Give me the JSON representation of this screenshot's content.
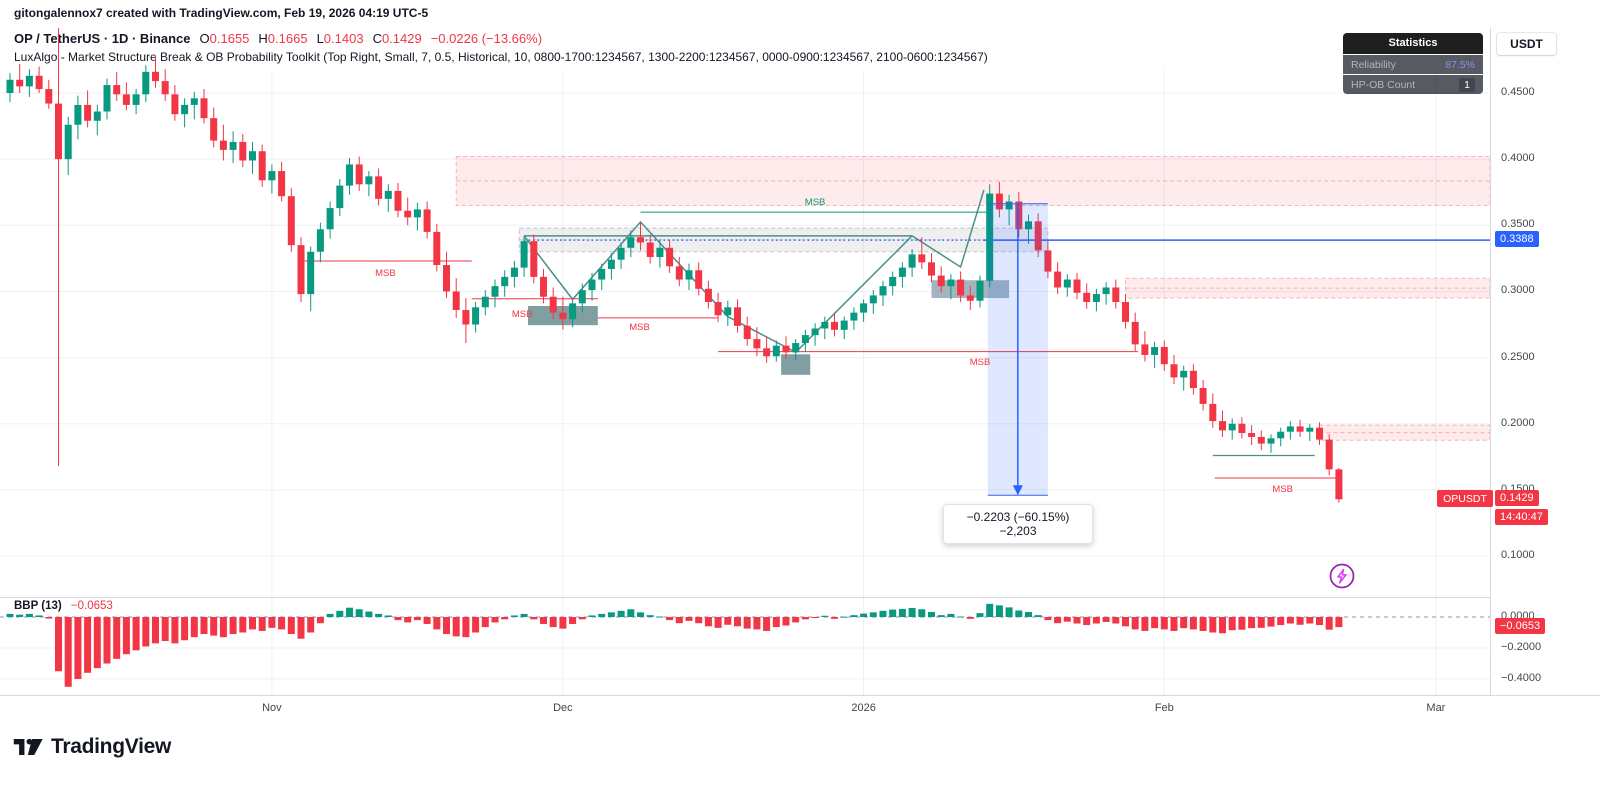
{
  "header": {
    "attribution": "gitongalennox7 created with TradingView.com, Feb 19, 2026 04:19 UTC-5",
    "symbol": "OP / TetherUS · 1D · Binance",
    "ohlc": [
      {
        "k": "O",
        "v": "0.1655"
      },
      {
        "k": "H",
        "v": "0.1665"
      },
      {
        "k": "L",
        "v": "0.1403"
      },
      {
        "k": "C",
        "v": "0.1429"
      }
    ],
    "change": "−0.0226 (−13.66%)",
    "indicator_title": "LuxAlgo - Market Structure Break & OB Probability Toolkit (Top Right, Small, 7, 0.5, Historical, 10, 0800-1700:1234567, 1300-2200:1234567, 0000-0900:1234567, 2100-0600:1234567)"
  },
  "stats_panel": {
    "title": "Statistics",
    "rows": [
      {
        "label": "Reliability",
        "value": "87.5%"
      },
      {
        "label": "HP-OB Count",
        "value": "1"
      }
    ]
  },
  "currency_button": {
    "label": "USDT"
  },
  "indicator_header": {
    "name": "BBP (13)",
    "value": "−0.0653"
  },
  "price_axis": {
    "tick_labels": [
      "0.4500",
      "0.4000",
      "0.3500",
      "0.3000",
      "0.2500",
      "0.2000",
      "0.1500",
      "0.1000"
    ],
    "blue_badge": "0.3388",
    "symbol_badge": "OPUSDT",
    "price_badge": "0.1429",
    "countdown": "14:40:47",
    "bbp_tick_labels": [
      "0.0000",
      "−0.2000",
      "−0.4000"
    ],
    "bbp_badge": "−0.0653"
  },
  "footer": {
    "brand": "TradingView"
  },
  "colors": {
    "up": "#089981",
    "down": "#f23645",
    "blue": "#2962ff",
    "grid": "#eef0f5",
    "structure": "#4c8f8a",
    "stats_value": "#8b90e8",
    "axis_text": "#434651"
  },
  "chart_data": {
    "type": "candlestick",
    "title": "OP/USDT 1D Binance with LuxAlgo Market Structure Break & OB Probability Toolkit",
    "legend_position": "top-right",
    "grid": true,
    "msb_label_text": "MSB",
    "last_price": 0.1429,
    "x_axis": {
      "labels": [
        {
          "text": "Nov",
          "idx": 27
        },
        {
          "text": "Dec",
          "idx": 57
        },
        {
          "text": "2026",
          "idx": 88
        },
        {
          "text": "Feb",
          "idx": 119
        },
        {
          "text": "Mar",
          "idx": 147
        }
      ]
    },
    "y_axis": {
      "ticks": [
        0.45,
        0.4,
        0.35,
        0.3,
        0.25,
        0.2,
        0.15,
        0.1
      ],
      "range": [
        0.09,
        0.5
      ]
    },
    "candles": [
      [
        0.45,
        0.465,
        0.443,
        0.46
      ],
      [
        0.46,
        0.472,
        0.45,
        0.455
      ],
      [
        0.455,
        0.468,
        0.447,
        0.463
      ],
      [
        0.463,
        0.47,
        0.45,
        0.453
      ],
      [
        0.453,
        0.46,
        0.438,
        0.442
      ],
      [
        0.442,
        0.499,
        0.168,
        0.4
      ],
      [
        0.4,
        0.432,
        0.388,
        0.426
      ],
      [
        0.426,
        0.448,
        0.415,
        0.441
      ],
      [
        0.441,
        0.452,
        0.424,
        0.429
      ],
      [
        0.429,
        0.441,
        0.418,
        0.436
      ],
      [
        0.436,
        0.461,
        0.43,
        0.456
      ],
      [
        0.456,
        0.466,
        0.444,
        0.449
      ],
      [
        0.449,
        0.458,
        0.437,
        0.441
      ],
      [
        0.441,
        0.453,
        0.434,
        0.449
      ],
      [
        0.449,
        0.471,
        0.443,
        0.466
      ],
      [
        0.466,
        0.478,
        0.454,
        0.459
      ],
      [
        0.459,
        0.468,
        0.444,
        0.449
      ],
      [
        0.449,
        0.456,
        0.429,
        0.434
      ],
      [
        0.434,
        0.446,
        0.424,
        0.441
      ],
      [
        0.441,
        0.451,
        0.43,
        0.446
      ],
      [
        0.446,
        0.453,
        0.427,
        0.431
      ],
      [
        0.431,
        0.439,
        0.409,
        0.414
      ],
      [
        0.414,
        0.426,
        0.399,
        0.407
      ],
      [
        0.407,
        0.421,
        0.397,
        0.413
      ],
      [
        0.413,
        0.419,
        0.394,
        0.399
      ],
      [
        0.399,
        0.413,
        0.389,
        0.406
      ],
      [
        0.406,
        0.411,
        0.379,
        0.384
      ],
      [
        0.384,
        0.396,
        0.374,
        0.391
      ],
      [
        0.391,
        0.398,
        0.368,
        0.372
      ],
      [
        0.372,
        0.378,
        0.33,
        0.335
      ],
      [
        0.335,
        0.341,
        0.292,
        0.298
      ],
      [
        0.298,
        0.334,
        0.285,
        0.33
      ],
      [
        0.33,
        0.352,
        0.322,
        0.347
      ],
      [
        0.347,
        0.368,
        0.34,
        0.363
      ],
      [
        0.363,
        0.385,
        0.357,
        0.38
      ],
      [
        0.38,
        0.401,
        0.373,
        0.396
      ],
      [
        0.396,
        0.402,
        0.376,
        0.381
      ],
      [
        0.381,
        0.391,
        0.372,
        0.387
      ],
      [
        0.387,
        0.393,
        0.365,
        0.37
      ],
      [
        0.37,
        0.381,
        0.36,
        0.376
      ],
      [
        0.376,
        0.382,
        0.356,
        0.361
      ],
      [
        0.361,
        0.371,
        0.35,
        0.356
      ],
      [
        0.356,
        0.367,
        0.346,
        0.362
      ],
      [
        0.362,
        0.368,
        0.34,
        0.345
      ],
      [
        0.345,
        0.351,
        0.315,
        0.32
      ],
      [
        0.32,
        0.33,
        0.295,
        0.3
      ],
      [
        0.3,
        0.31,
        0.28,
        0.286
      ],
      [
        0.286,
        0.295,
        0.261,
        0.275
      ],
      [
        0.275,
        0.292,
        0.269,
        0.288
      ],
      [
        0.288,
        0.301,
        0.282,
        0.296
      ],
      [
        0.296,
        0.309,
        0.288,
        0.304
      ],
      [
        0.304,
        0.316,
        0.296,
        0.311
      ],
      [
        0.311,
        0.323,
        0.303,
        0.318
      ],
      [
        0.318,
        0.342,
        0.311,
        0.338
      ],
      [
        0.338,
        0.343,
        0.306,
        0.311
      ],
      [
        0.311,
        0.317,
        0.291,
        0.296
      ],
      [
        0.296,
        0.303,
        0.279,
        0.284
      ],
      [
        0.284,
        0.296,
        0.271,
        0.279
      ],
      [
        0.279,
        0.294,
        0.273,
        0.291
      ],
      [
        0.291,
        0.306,
        0.284,
        0.301
      ],
      [
        0.301,
        0.314,
        0.293,
        0.309
      ],
      [
        0.309,
        0.321,
        0.301,
        0.317
      ],
      [
        0.317,
        0.329,
        0.309,
        0.324
      ],
      [
        0.324,
        0.337,
        0.317,
        0.333
      ],
      [
        0.333,
        0.346,
        0.326,
        0.341
      ],
      [
        0.341,
        0.352,
        0.331,
        0.337
      ],
      [
        0.337,
        0.343,
        0.321,
        0.326
      ],
      [
        0.326,
        0.338,
        0.318,
        0.333
      ],
      [
        0.333,
        0.339,
        0.314,
        0.319
      ],
      [
        0.319,
        0.326,
        0.304,
        0.309
      ],
      [
        0.309,
        0.321,
        0.301,
        0.316
      ],
      [
        0.316,
        0.322,
        0.297,
        0.302
      ],
      [
        0.302,
        0.308,
        0.287,
        0.292
      ],
      [
        0.292,
        0.299,
        0.277,
        0.282
      ],
      [
        0.282,
        0.293,
        0.274,
        0.288
      ],
      [
        0.288,
        0.294,
        0.269,
        0.274
      ],
      [
        0.274,
        0.281,
        0.259,
        0.264
      ],
      [
        0.264,
        0.273,
        0.251,
        0.257
      ],
      [
        0.257,
        0.266,
        0.246,
        0.251
      ],
      [
        0.251,
        0.263,
        0.247,
        0.259
      ],
      [
        0.259,
        0.266,
        0.249,
        0.254
      ],
      [
        0.254,
        0.264,
        0.248,
        0.261
      ],
      [
        0.261,
        0.271,
        0.254,
        0.267
      ],
      [
        0.267,
        0.276,
        0.259,
        0.272
      ],
      [
        0.272,
        0.281,
        0.264,
        0.277
      ],
      [
        0.277,
        0.284,
        0.266,
        0.271
      ],
      [
        0.271,
        0.281,
        0.264,
        0.278
      ],
      [
        0.278,
        0.288,
        0.271,
        0.284
      ],
      [
        0.284,
        0.294,
        0.277,
        0.291
      ],
      [
        0.291,
        0.301,
        0.283,
        0.297
      ],
      [
        0.297,
        0.308,
        0.289,
        0.304
      ],
      [
        0.304,
        0.315,
        0.297,
        0.311
      ],
      [
        0.311,
        0.322,
        0.303,
        0.318
      ],
      [
        0.318,
        0.332,
        0.311,
        0.328
      ],
      [
        0.328,
        0.341,
        0.317,
        0.322
      ],
      [
        0.322,
        0.329,
        0.307,
        0.312
      ],
      [
        0.312,
        0.319,
        0.299,
        0.304
      ],
      [
        0.304,
        0.313,
        0.294,
        0.309
      ],
      [
        0.309,
        0.315,
        0.292,
        0.297
      ],
      [
        0.297,
        0.304,
        0.286,
        0.293
      ],
      [
        0.293,
        0.312,
        0.288,
        0.308
      ],
      [
        0.308,
        0.381,
        0.303,
        0.374
      ],
      [
        0.374,
        0.383,
        0.356,
        0.362
      ],
      [
        0.362,
        0.373,
        0.35,
        0.368
      ],
      [
        0.368,
        0.375,
        0.341,
        0.347
      ],
      [
        0.347,
        0.358,
        0.336,
        0.353
      ],
      [
        0.353,
        0.359,
        0.326,
        0.331
      ],
      [
        0.331,
        0.338,
        0.31,
        0.315
      ],
      [
        0.315,
        0.322,
        0.298,
        0.303
      ],
      [
        0.303,
        0.313,
        0.296,
        0.309
      ],
      [
        0.309,
        0.314,
        0.294,
        0.299
      ],
      [
        0.299,
        0.306,
        0.287,
        0.292
      ],
      [
        0.292,
        0.302,
        0.285,
        0.298
      ],
      [
        0.298,
        0.307,
        0.29,
        0.303
      ],
      [
        0.303,
        0.309,
        0.287,
        0.292
      ],
      [
        0.292,
        0.298,
        0.272,
        0.277
      ],
      [
        0.277,
        0.284,
        0.255,
        0.26
      ],
      [
        0.26,
        0.27,
        0.247,
        0.252
      ],
      [
        0.252,
        0.262,
        0.242,
        0.258
      ],
      [
        0.258,
        0.263,
        0.24,
        0.245
      ],
      [
        0.245,
        0.252,
        0.23,
        0.235
      ],
      [
        0.235,
        0.244,
        0.225,
        0.24
      ],
      [
        0.24,
        0.245,
        0.222,
        0.227
      ],
      [
        0.227,
        0.233,
        0.21,
        0.215
      ],
      [
        0.215,
        0.223,
        0.197,
        0.202
      ],
      [
        0.202,
        0.21,
        0.19,
        0.195
      ],
      [
        0.195,
        0.204,
        0.188,
        0.2
      ],
      [
        0.2,
        0.205,
        0.189,
        0.193
      ],
      [
        0.193,
        0.199,
        0.184,
        0.19
      ],
      [
        0.19,
        0.195,
        0.18,
        0.185
      ],
      [
        0.185,
        0.192,
        0.178,
        0.189
      ],
      [
        0.189,
        0.197,
        0.183,
        0.194
      ],
      [
        0.194,
        0.202,
        0.188,
        0.198
      ],
      [
        0.198,
        0.203,
        0.19,
        0.194
      ],
      [
        0.194,
        0.2,
        0.187,
        0.197
      ],
      [
        0.197,
        0.201,
        0.184,
        0.188
      ],
      [
        0.188,
        0.192,
        0.161,
        0.1655
      ],
      [
        0.1655,
        0.1665,
        0.1403,
        0.1429
      ]
    ],
    "bbp": {
      "name": "BBP",
      "length": 13,
      "current": -0.0653,
      "ticks": [
        0.0,
        -0.2,
        -0.4
      ],
      "values": [
        0.02,
        0.015,
        0.02,
        0.01,
        -0.01,
        -0.35,
        -0.45,
        -0.4,
        -0.36,
        -0.33,
        -0.3,
        -0.27,
        -0.24,
        -0.215,
        -0.19,
        -0.17,
        -0.155,
        -0.17,
        -0.15,
        -0.13,
        -0.11,
        -0.12,
        -0.13,
        -0.11,
        -0.1,
        -0.08,
        -0.09,
        -0.07,
        -0.08,
        -0.11,
        -0.14,
        -0.1,
        -0.04,
        0.02,
        0.04,
        0.06,
        0.05,
        0.035,
        0.02,
        0.01,
        -0.02,
        -0.035,
        -0.02,
        -0.045,
        -0.08,
        -0.11,
        -0.125,
        -0.13,
        -0.1,
        -0.065,
        -0.035,
        -0.015,
        0.01,
        0.02,
        -0.015,
        -0.045,
        -0.065,
        -0.075,
        -0.045,
        -0.015,
        0.01,
        0.02,
        0.03,
        0.04,
        0.05,
        0.03,
        0.012,
        0.003,
        -0.02,
        -0.04,
        -0.025,
        -0.04,
        -0.06,
        -0.07,
        -0.05,
        -0.06,
        -0.075,
        -0.08,
        -0.09,
        -0.065,
        -0.055,
        -0.035,
        -0.015,
        -0.005,
        0.008,
        -0.012,
        0.002,
        0.012,
        0.022,
        0.03,
        0.04,
        0.048,
        0.052,
        0.058,
        0.05,
        0.032,
        0.012,
        0.02,
        0.003,
        -0.012,
        0.025,
        0.085,
        0.075,
        0.062,
        0.042,
        0.032,
        0.012,
        -0.02,
        -0.04,
        -0.03,
        -0.042,
        -0.052,
        -0.042,
        -0.032,
        -0.042,
        -0.06,
        -0.08,
        -0.09,
        -0.072,
        -0.08,
        -0.09,
        -0.072,
        -0.08,
        -0.09,
        -0.1,
        -0.105,
        -0.085,
        -0.082,
        -0.072,
        -0.07,
        -0.062,
        -0.052,
        -0.042,
        -0.05,
        -0.042,
        -0.052,
        -0.082,
        -0.0653
      ]
    },
    "zones": [
      {
        "kind": "supply",
        "from_idx": 46,
        "to": "right",
        "top": 0.402,
        "bottom": 0.365
      },
      {
        "kind": "supply",
        "from_idx": 115,
        "to": "right",
        "top": 0.31,
        "bottom": 0.295
      },
      {
        "kind": "supply",
        "from_idx": 135,
        "to": "right",
        "top": 0.199,
        "bottom": 0.1875
      },
      {
        "kind": "neutral",
        "from_idx": 52.5,
        "to_idx": 107,
        "top": 0.348,
        "bottom": 0.33
      },
      {
        "kind": "ob_teal",
        "from_idx": 53.4,
        "to_idx": 60.6,
        "top": 0.289,
        "bottom": 0.2745
      },
      {
        "kind": "ob_teal",
        "from_idx": 79.5,
        "to_idx": 82.5,
        "top": 0.2525,
        "bottom": 0.237
      },
      {
        "kind": "ob_slate",
        "from_idx": 95,
        "to_idx": 103,
        "top": 0.3085,
        "bottom": 0.295
      }
    ],
    "msb_lines": [
      {
        "color": "red",
        "from_idx": 29.7,
        "to_idx": 47.6,
        "price": 0.323,
        "label_idx": 38.7,
        "label_price": 0.3117
      },
      {
        "color": "red",
        "from_idx": 47.6,
        "to_idx": 60.6,
        "price": 0.2945,
        "label_idx": 52.8,
        "label_price": 0.2807
      },
      {
        "color": "red",
        "from_idx": 60.6,
        "to_idx": 73.0,
        "price": 0.28,
        "label_idx": 64.9,
        "label_price": 0.2708
      },
      {
        "color": "red",
        "from_idx": 73.0,
        "to_idx": 116.3,
        "price": 0.2545,
        "label_idx": 100,
        "label_price": 0.2444
      },
      {
        "color": "red",
        "from_idx": 124.2,
        "to_idx": 136.9,
        "price": 0.159,
        "label_idx": 131.2,
        "label_price": 0.1484
      },
      {
        "color": "green",
        "from_idx": 65,
        "to_idx": 100.7,
        "price": 0.36,
        "label_idx": 83,
        "label_price": 0.3655
      }
    ],
    "structure": {
      "zigzag": [
        [
          53,
          0.342
        ],
        [
          58,
          0.294
        ],
        [
          65,
          0.3525
        ],
        [
          74,
          0.281
        ],
        [
          81,
          0.254
        ],
        [
          93,
          0.342
        ],
        [
          98,
          0.3185
        ],
        [
          100.4,
          0.3767
        ]
      ],
      "swing_line": {
        "from_idx": 53,
        "to_idx": 93,
        "price": 0.342
      },
      "feb_line": {
        "from_idx": 124,
        "to_idx": 134.5,
        "price": 0.176
      }
    },
    "blue_line": {
      "price": 0.3388,
      "dotted_from_idx": 53,
      "solid_from_idx": 100.4
    },
    "measurement": {
      "from_idx": 100.8,
      "to_idx": 107.0,
      "top_price": 0.3663,
      "bottom_price": 0.146,
      "label": "−0.2203 (−60.15%) −2,203"
    }
  }
}
